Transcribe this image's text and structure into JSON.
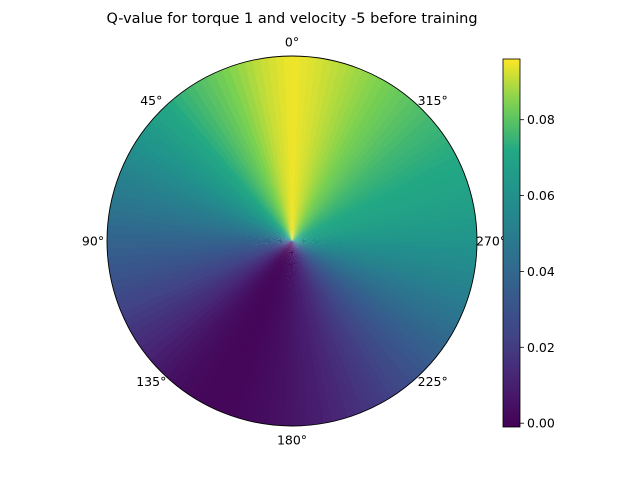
{
  "chart_data": {
    "type": "heatmap",
    "projection": "polar",
    "title": "Q-value for torque 1 and velocity -5 before training",
    "theta_zero_location": "top",
    "theta_direction": "counterclockwise",
    "theta_tick_labels": [
      "0°",
      "45°",
      "90°",
      "135°",
      "180°",
      "225°",
      "270°",
      "315°"
    ],
    "theta_deg": [
      0,
      10,
      20,
      30,
      40,
      50,
      60,
      70,
      80,
      90,
      100,
      110,
      120,
      130,
      140,
      150,
      160,
      170,
      180,
      190,
      200,
      210,
      220,
      230,
      240,
      250,
      260,
      270,
      280,
      290,
      300,
      310,
      320,
      330,
      340,
      350,
      360
    ],
    "q_values": [
      0.095,
      0.091,
      0.085,
      0.079,
      0.073,
      0.066,
      0.059,
      0.052,
      0.045,
      0.038,
      0.031,
      0.024,
      0.017,
      0.01,
      0.004,
      0.001,
      0.001,
      0.003,
      0.006,
      0.01,
      0.015,
      0.021,
      0.028,
      0.035,
      0.042,
      0.049,
      0.056,
      0.062,
      0.067,
      0.07,
      0.073,
      0.076,
      0.08,
      0.084,
      0.088,
      0.092,
      0.095
    ],
    "colorbar": {
      "vmin": -0.001,
      "vmax": 0.096,
      "colormap": "viridis",
      "ticks": [
        0.0,
        0.02,
        0.04,
        0.06,
        0.08
      ],
      "tick_labels": [
        "0.00",
        "0.02",
        "0.04",
        "0.06",
        "0.08"
      ]
    }
  }
}
